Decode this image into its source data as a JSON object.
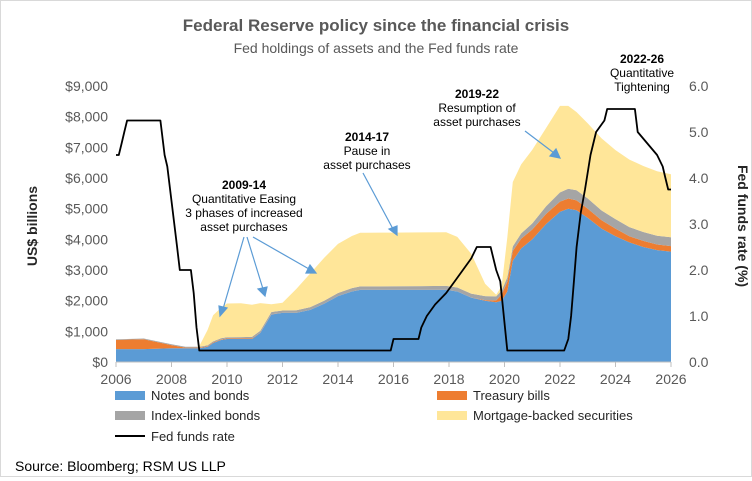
{
  "chart_data": {
    "type": "area",
    "title": "Federal Reserve policy since the financial crisis",
    "subtitle": "Fed holdings of assets and the Fed funds rate",
    "ylabel": "US$ billions",
    "y2label": "Fed funds rate (%)",
    "xlim": [
      2006,
      2026
    ],
    "ylim": [
      0,
      9000
    ],
    "y2lim": [
      0,
      6.0
    ],
    "xticks": [
      "2006",
      "2008",
      "2010",
      "2012",
      "2014",
      "2016",
      "2018",
      "2020",
      "2022",
      "2024",
      "2026"
    ],
    "yticks": [
      "$0",
      "$1,000",
      "$2,000",
      "$3,000",
      "$4,000",
      "$5,000",
      "$6,000",
      "$7,000",
      "$8,000",
      "$9,000"
    ],
    "y2ticks": [
      "0.0",
      "1.0",
      "2.0",
      "3.0",
      "4.0",
      "5.0",
      "6.0"
    ],
    "x": [
      2006.0,
      2007.0,
      2008.0,
      2008.5,
      2008.9,
      2009.0,
      2009.3,
      2009.5,
      2009.8,
      2010.0,
      2010.5,
      2010.9,
      2011.2,
      2011.6,
      2012.0,
      2012.5,
      2013.0,
      2013.5,
      2014.0,
      2014.5,
      2014.8,
      2015.0,
      2016.0,
      2017.0,
      2017.9,
      2018.3,
      2018.8,
      2019.3,
      2019.7,
      2019.9,
      2020.1,
      2020.3,
      2020.6,
      2021.0,
      2021.5,
      2022.0,
      2022.3,
      2022.6,
      2023.0,
      2023.5,
      2024.0,
      2024.5,
      2025.0,
      2025.5,
      2026.0
    ],
    "series": [
      {
        "name": "Notes and bonds",
        "color": "#5b9bd5",
        "values": [
          420,
          420,
          450,
          450,
          450,
          450,
          500,
          620,
          720,
          750,
          750,
          750,
          950,
          1550,
          1600,
          1600,
          1700,
          1900,
          2150,
          2300,
          2350,
          2350,
          2350,
          2350,
          2350,
          2300,
          2100,
          2000,
          1950,
          2000,
          2300,
          3300,
          3700,
          4000,
          4500,
          4900,
          5000,
          4950,
          4700,
          4350,
          4100,
          3900,
          3750,
          3650,
          3600
        ]
      },
      {
        "name": "Treasury bills",
        "color": "#ed7d31",
        "values": [
          300,
          320,
          100,
          20,
          18,
          18,
          18,
          18,
          18,
          18,
          18,
          18,
          10,
          5,
          0,
          0,
          0,
          0,
          0,
          0,
          0,
          0,
          0,
          0,
          0,
          0,
          0,
          20,
          60,
          200,
          320,
          320,
          320,
          320,
          330,
          330,
          330,
          320,
          300,
          270,
          250,
          200,
          200,
          180,
          180
        ]
      },
      {
        "name": "Index-linked bonds",
        "color": "#a5a5a5",
        "values": [
          20,
          25,
          30,
          30,
          30,
          30,
          30,
          35,
          40,
          40,
          45,
          50,
          60,
          75,
          80,
          85,
          90,
          95,
          100,
          110,
          115,
          115,
          120,
          125,
          130,
          130,
          130,
          130,
          130,
          130,
          140,
          150,
          170,
          200,
          250,
          300,
          320,
          330,
          330,
          320,
          310,
          300,
          290,
          290,
          290
        ]
      },
      {
        "name": "Mortgage-backed securities",
        "color": "#ffe699",
        "values": [
          0,
          0,
          0,
          0,
          0,
          20,
          500,
          850,
          1000,
          1100,
          1100,
          1050,
          900,
          250,
          250,
          700,
          1100,
          1400,
          1600,
          1700,
          1750,
          1750,
          1750,
          1750,
          1750,
          1650,
          1300,
          400,
          50,
          150,
          1300,
          2100,
          2250,
          2400,
          2550,
          2820,
          2700,
          2550,
          2450,
          2350,
          2250,
          2200,
          2150,
          2100,
          2050
        ]
      }
    ],
    "fed_funds_rate": {
      "name": "Fed funds rate",
      "color": "#000000",
      "x": [
        2006.0,
        2006.1,
        2006.2,
        2006.3,
        2006.4,
        2006.5,
        2007.6,
        2007.7,
        2007.75,
        2007.85,
        2008.0,
        2008.1,
        2008.2,
        2008.3,
        2008.7,
        2008.8,
        2008.9,
        2009.0,
        2015.9,
        2016.0,
        2016.9,
        2017.0,
        2017.2,
        2017.5,
        2017.9,
        2018.2,
        2018.5,
        2018.8,
        2019.0,
        2019.5,
        2019.6,
        2019.7,
        2019.85,
        2020.1,
        2020.2,
        2022.15,
        2022.3,
        2022.4,
        2022.5,
        2022.6,
        2022.75,
        2022.9,
        2023.1,
        2023.3,
        2023.6,
        2023.7,
        2024.7,
        2024.8,
        2025.5,
        2025.7,
        2025.8,
        2025.9,
        2026.0
      ],
      "values": [
        4.5,
        4.5,
        4.75,
        5.0,
        5.25,
        5.25,
        5.25,
        4.75,
        4.5,
        4.25,
        3.5,
        3.0,
        2.5,
        2.0,
        2.0,
        1.5,
        0.75,
        0.25,
        0.25,
        0.5,
        0.5,
        0.75,
        1.0,
        1.25,
        1.5,
        1.75,
        2.0,
        2.25,
        2.5,
        2.5,
        2.25,
        2.0,
        1.75,
        0.25,
        0.25,
        0.25,
        0.5,
        1.0,
        1.75,
        2.5,
        3.25,
        3.75,
        4.5,
        5.0,
        5.25,
        5.5,
        5.5,
        5.0,
        4.5,
        4.25,
        4.0,
        3.75,
        3.75
      ]
    },
    "annotations": [
      {
        "year": "2009-14",
        "lines": [
          "Quantitative Easing",
          "3 phases of increased",
          "asset purchases"
        ]
      },
      {
        "year": "2014-17",
        "lines": [
          "Pause  in",
          "asset purchases"
        ]
      },
      {
        "year": "2019-22",
        "lines": [
          "Resumption of",
          "asset purchases"
        ]
      },
      {
        "year": "2022-26",
        "lines": [
          "Quantitative",
          "Tightening"
        ]
      }
    ],
    "legend_position": "bottom",
    "source": "Source: Bloomberg;  RSM US LLP"
  }
}
